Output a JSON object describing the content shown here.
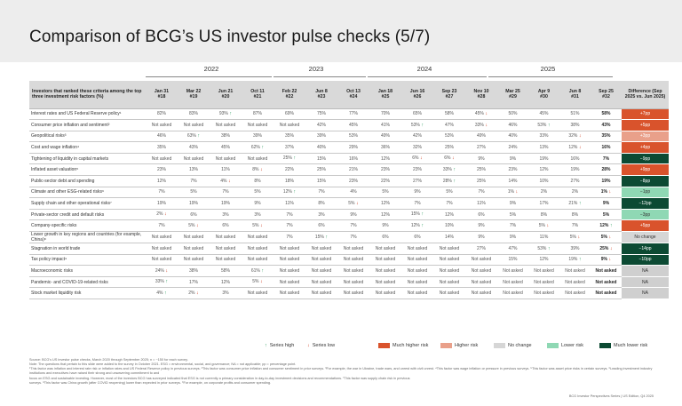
{
  "title": "Comparison of BCG’s US investor pulse checks (5/7)",
  "years": [
    "2022",
    "2023",
    "2024",
    "2025"
  ],
  "header": {
    "criteria": "Investors that ranked these criteria among the top three investment risk factors (%)",
    "difference": "Difference (Sep 2025 vs. Jun 2025)"
  },
  "columns": [
    {
      "date": "Jan 31",
      "num": "#18"
    },
    {
      "date": "Mar 22",
      "num": "#19"
    },
    {
      "date": "Jun 21",
      "num": "#20"
    },
    {
      "date": "Oct 11",
      "num": "#21"
    },
    {
      "date": "Feb 22",
      "num": "#22"
    },
    {
      "date": "Jun 8",
      "num": "#23"
    },
    {
      "date": "Oct 13",
      "num": "#24"
    },
    {
      "date": "Jan 18",
      "num": "#25"
    },
    {
      "date": "Jun 16",
      "num": "#26"
    },
    {
      "date": "Sep 23",
      "num": "#27"
    },
    {
      "date": "Nov 10",
      "num": "#28"
    },
    {
      "date": "Mar 25",
      "num": "#29"
    },
    {
      "date": "Apr 9",
      "num": "#30"
    },
    {
      "date": "Jun 8",
      "num": "#31"
    },
    {
      "date": "Sep 25",
      "num": "#32"
    }
  ],
  "rows": [
    {
      "label": "Interest rates and US Federal Reserve policy¹",
      "values": [
        "82%",
        "83%",
        "93%",
        "87%",
        "69%",
        "75%",
        "77%",
        "70%",
        "65%",
        "58%",
        "45%",
        "50%",
        "45%",
        "51%",
        "58%"
      ],
      "marks": [
        "",
        "",
        "up",
        "",
        "",
        "",
        "",
        "",
        "",
        "",
        "dn",
        "",
        "",
        "",
        ""
      ],
      "diff": "+7pp",
      "level": "much_higher"
    },
    {
      "label": "Consumer price inflation and sentiment²",
      "values": [
        "Not asked",
        "Not asked",
        "Not asked",
        "Not asked",
        "Not asked",
        "42%",
        "45%",
        "41%",
        "53%",
        "47%",
        "33%",
        "46%",
        "53%",
        "38%",
        "43%"
      ],
      "marks": [
        "",
        "",
        "",
        "",
        "",
        "",
        "",
        "",
        "up",
        "",
        "dn",
        "",
        "up",
        "",
        ""
      ],
      "diff": "+5pp",
      "level": "much_higher"
    },
    {
      "label": "Geopolitical risks³",
      "values": [
        "46%",
        "63%",
        "38%",
        "39%",
        "35%",
        "39%",
        "53%",
        "49%",
        "42%",
        "53%",
        "49%",
        "40%",
        "33%",
        "32%",
        "35%"
      ],
      "marks": [
        "",
        "up",
        "",
        "",
        "",
        "",
        "",
        "",
        "",
        "",
        "",
        "",
        "",
        "dn",
        ""
      ],
      "diff": "+3pp",
      "level": "higher"
    },
    {
      "label": "Cost and wage inflation⁴",
      "values": [
        "35%",
        "43%",
        "45%",
        "62%",
        "37%",
        "40%",
        "29%",
        "36%",
        "32%",
        "25%",
        "27%",
        "24%",
        "13%",
        "12%",
        "16%"
      ],
      "marks": [
        "",
        "",
        "",
        "up",
        "",
        "",
        "",
        "",
        "",
        "",
        "",
        "",
        "",
        "dn",
        ""
      ],
      "diff": "+4pp",
      "level": "much_higher"
    },
    {
      "label": "Tightening of liquidity in capital markets",
      "values": [
        "Not asked",
        "Not asked",
        "Not asked",
        "Not asked",
        "25%",
        "15%",
        "16%",
        "12%",
        "6%",
        "6%",
        "9%",
        "9%",
        "19%",
        "16%",
        "7%"
      ],
      "marks": [
        "",
        "",
        "",
        "",
        "up",
        "",
        "",
        "",
        "dn",
        "dn",
        "",
        "",
        "",
        "",
        ""
      ],
      "diff": "−9pp",
      "level": "much_lower"
    },
    {
      "label": "Inflated asset valuation⁵",
      "values": [
        "23%",
        "13%",
        "11%",
        "8%",
        "22%",
        "25%",
        "21%",
        "23%",
        "23%",
        "33%",
        "25%",
        "23%",
        "12%",
        "19%",
        "28%"
      ],
      "marks": [
        "",
        "",
        "",
        "dn",
        "",
        "",
        "",
        "",
        "",
        "up",
        "",
        "",
        "",
        "",
        ""
      ],
      "diff": "+9pp",
      "level": "much_higher"
    },
    {
      "label": "Public-sector debt and spending",
      "values": [
        "12%",
        "7%",
        "4%",
        "8%",
        "18%",
        "15%",
        "23%",
        "22%",
        "27%",
        "28%",
        "25%",
        "14%",
        "10%",
        "27%",
        "19%"
      ],
      "marks": [
        "",
        "",
        "dn",
        "",
        "",
        "",
        "",
        "",
        "",
        "up",
        "",
        "",
        "",
        "",
        ""
      ],
      "diff": "−8pp",
      "level": "much_lower"
    },
    {
      "label": "Climate and other ESG-related risks⁶",
      "values": [
        "7%",
        "5%",
        "7%",
        "5%",
        "12%",
        "7%",
        "4%",
        "5%",
        "9%",
        "5%",
        "7%",
        "1%",
        "2%",
        "2%",
        "1%"
      ],
      "marks": [
        "",
        "",
        "",
        "",
        "up",
        "",
        "",
        "",
        "",
        "",
        "",
        "dn",
        "",
        "",
        "dn"
      ],
      "diff": "−1pp",
      "level": "lower"
    },
    {
      "label": "Supply chain and other operational risks⁷",
      "values": [
        "19%",
        "19%",
        "19%",
        "9%",
        "11%",
        "8%",
        "5%",
        "12%",
        "7%",
        "7%",
        "11%",
        "9%",
        "17%",
        "21%",
        "9%"
      ],
      "marks": [
        "",
        "",
        "",
        "",
        "",
        "",
        "dn",
        "",
        "",
        "",
        "",
        "",
        "",
        "up",
        ""
      ],
      "diff": "−12pp",
      "level": "much_lower"
    },
    {
      "label": "Private-sector credit and default risks",
      "values": [
        "2%",
        "6%",
        "3%",
        "3%",
        "7%",
        "3%",
        "9%",
        "12%",
        "15%",
        "12%",
        "6%",
        "5%",
        "8%",
        "8%",
        "5%"
      ],
      "marks": [
        "dn",
        "",
        "",
        "",
        "",
        "",
        "",
        "",
        "up",
        "",
        "",
        "",
        "",
        "",
        ""
      ],
      "diff": "−3pp",
      "level": "lower"
    },
    {
      "label": "Company-specific risks",
      "values": [
        "7%",
        "5%",
        "6%",
        "5%",
        "7%",
        "6%",
        "7%",
        "9%",
        "12%",
        "10%",
        "9%",
        "7%",
        "5%",
        "7%",
        "12%"
      ],
      "marks": [
        "",
        "dn",
        "",
        "dn",
        "",
        "",
        "",
        "",
        "up",
        "",
        "",
        "",
        "dn",
        "",
        "up"
      ],
      "diff": "+5pp",
      "level": "much_higher"
    },
    {
      "label": "Lower growth in key regions and countries (for example, China)⁸",
      "values": [
        "Not asked",
        "Not asked",
        "Not asked",
        "Not asked",
        "7%",
        "15%",
        "7%",
        "6%",
        "6%",
        "14%",
        "9%",
        "9%",
        "11%",
        "5%",
        "5%"
      ],
      "marks": [
        "",
        "",
        "",
        "",
        "",
        "up",
        "",
        "",
        "",
        "",
        "",
        "",
        "",
        "dn",
        "dn"
      ],
      "diff": "No change",
      "level": "no_change",
      "tall": true
    },
    {
      "label": "Stagnation in world trade",
      "values": [
        "Not asked",
        "Not asked",
        "Not asked",
        "Not asked",
        "Not asked",
        "Not asked",
        "Not asked",
        "Not asked",
        "Not asked",
        "Not asked",
        "27%",
        "47%",
        "53%",
        "39%",
        "25%"
      ],
      "marks": [
        "",
        "",
        "",
        "",
        "",
        "",
        "",
        "",
        "",
        "",
        "",
        "",
        "up",
        "",
        "dn"
      ],
      "diff": "−14pp",
      "level": "much_lower"
    },
    {
      "label": "Tax policy impact⁹",
      "values": [
        "Not asked",
        "Not asked",
        "Not asked",
        "Not asked",
        "Not asked",
        "Not asked",
        "Not asked",
        "Not asked",
        "Not asked",
        "Not asked",
        "Not asked",
        "15%",
        "12%",
        "19%",
        "9%"
      ],
      "marks": [
        "",
        "",
        "",
        "",
        "",
        "",
        "",
        "",
        "",
        "",
        "",
        "",
        "",
        "up",
        "dn"
      ],
      "diff": "−10pp",
      "level": "much_lower"
    },
    {
      "label": "Macroeconomic risks",
      "values": [
        "24%",
        "38%",
        "58%",
        "61%",
        "Not asked",
        "Not asked",
        "Not asked",
        "Not asked",
        "Not asked",
        "Not asked",
        "Not asked",
        "Not asked",
        "Not asked",
        "Not asked",
        "Not asked"
      ],
      "marks": [
        "dn",
        "",
        "",
        "up",
        "",
        "",
        "",
        "",
        "",
        "",
        "",
        "",
        "",
        "",
        ""
      ],
      "diff": "NA",
      "level": "na"
    },
    {
      "label": "Pandemic- and COVID-19-related risks",
      "values": [
        "33%",
        "17%",
        "12%",
        "5%",
        "Not asked",
        "Not asked",
        "Not asked",
        "Not asked",
        "Not asked",
        "Not asked",
        "Not asked",
        "Not asked",
        "Not asked",
        "Not asked",
        "Not asked"
      ],
      "marks": [
        "up",
        "",
        "",
        "dn",
        "",
        "",
        "",
        "",
        "",
        "",
        "",
        "",
        "",
        "",
        ""
      ],
      "diff": "NA",
      "level": "na"
    },
    {
      "label": "Stock market liquidity risk",
      "values": [
        "4%",
        "2%",
        "3%",
        "Not asked",
        "Not asked",
        "Not asked",
        "Not asked",
        "Not asked",
        "Not asked",
        "Not asked",
        "Not asked",
        "Not asked",
        "Not asked",
        "Not asked",
        "Not asked"
      ],
      "marks": [
        "up",
        "dn",
        "",
        "",
        "",
        "",
        "",
        "",
        "",
        "",
        "",
        "",
        "",
        "",
        ""
      ],
      "diff": "NA",
      "level": "na"
    }
  ],
  "colors": {
    "much_higher": "#d9532c",
    "higher": "#e9a08a",
    "no_change": "#d6d6d6",
    "lower": "#8fd8b4",
    "much_lower": "#0c4a33",
    "na": "#cfcfcf",
    "up": "#2e9e62",
    "down": "#d2452a"
  },
  "legend": {
    "series_high": "Series high",
    "series_low": "Series low",
    "much_higher": "Much higher risk",
    "higher": "Higher risk",
    "no_change": "No change",
    "lower": "Lower risk",
    "much_lower": "Much lower risk"
  },
  "footnotes": {
    "source": "Source: BCG's US investor pulse checks, March 2020 through September 2025; n = ~150 for each survey.",
    "note": "Note: The questions that pertain to this slide were added to the survey in October 2021. ESG = environmental, social, and governance; NA = not applicable; pp = percentage point.",
    "f1": "¹This factor was inflation and interest rate risk or inflation rates and US Federal Reserve policy in previous surveys. ²This factor was consumer price inflation and consumer sentiment in prior surveys. ³For example, the war in Ukraine, trade wars, and unrest with civil unrest. ⁴This factor was wage inflation or pressure in previous surveys. ⁵This factor was asset price risks in certain surveys. ⁶Leading investment industry institutions and executives have raised their strong and unwavering commitment to and",
    "f2": "focus on ESG and sustainable investing. However, most of the investors BCG has surveyed indicated that ESG is not currently a primary consideration in day-to-day investment decisions and recommendations. ⁷This factor was supply chain risk in previous",
    "f3": "surveys. ⁸This factor was China growth (after COVID reopening) lower than expected in prior surveys. ⁹For example, on corporate profits and consumer spending."
  },
  "brand": "BCG Investor Perspectives Series | US Edition, Q4 2025"
}
